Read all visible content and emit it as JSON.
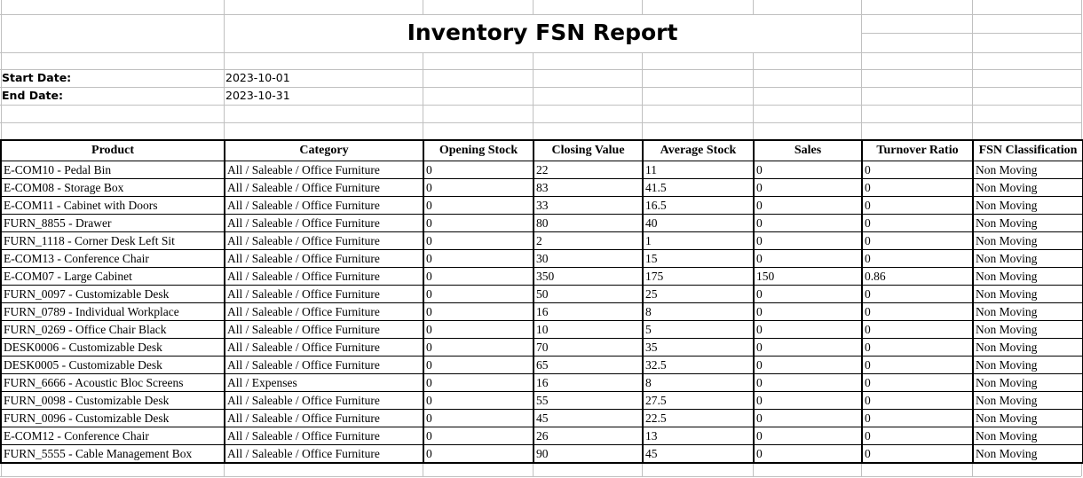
{
  "sheet": {
    "title": "Inventory FSN Report",
    "fields": {
      "start": {
        "label": "Start Date:",
        "value": "2023-10-01"
      },
      "end": {
        "label": "End Date:",
        "value": "2023-10-31"
      }
    },
    "table": {
      "columns": [
        "Product",
        "Category",
        "Opening Stock",
        "Closing Value",
        "Average Stock",
        "Sales",
        "Turnover Ratio",
        "FSN Classification"
      ],
      "rows": [
        [
          "E-COM10 - Pedal Bin",
          "All / Saleable / Office Furniture",
          "0",
          "22",
          "11",
          "0",
          "0",
          "Non Moving"
        ],
        [
          "E-COM08 - Storage Box",
          "All / Saleable / Office Furniture",
          "0",
          "83",
          "41.5",
          "0",
          "0",
          "Non Moving"
        ],
        [
          "E-COM11 - Cabinet with Doors",
          "All / Saleable / Office Furniture",
          "0",
          "33",
          "16.5",
          "0",
          "0",
          "Non Moving"
        ],
        [
          "FURN_8855 - Drawer",
          "All / Saleable / Office Furniture",
          "0",
          "80",
          "40",
          "0",
          "0",
          "Non Moving"
        ],
        [
          "FURN_1118 - Corner Desk Left Sit",
          "All / Saleable / Office Furniture",
          "0",
          "2",
          "1",
          "0",
          "0",
          "Non Moving"
        ],
        [
          "E-COM13 - Conference Chair",
          "All / Saleable / Office Furniture",
          "0",
          "30",
          "15",
          "0",
          "0",
          "Non Moving"
        ],
        [
          "E-COM07 - Large Cabinet",
          "All / Saleable / Office Furniture",
          "0",
          "350",
          "175",
          "150",
          "0.86",
          "Non Moving"
        ],
        [
          "FURN_0097 - Customizable Desk",
          "All / Saleable / Office Furniture",
          "0",
          "50",
          "25",
          "0",
          "0",
          "Non Moving"
        ],
        [
          "FURN_0789 - Individual Workplace",
          "All / Saleable / Office Furniture",
          "0",
          "16",
          "8",
          "0",
          "0",
          "Non Moving"
        ],
        [
          "FURN_0269 - Office Chair Black",
          "All / Saleable / Office Furniture",
          "0",
          "10",
          "5",
          "0",
          "0",
          "Non Moving"
        ],
        [
          "DESK0006 - Customizable Desk",
          "All / Saleable / Office Furniture",
          "0",
          "70",
          "35",
          "0",
          "0",
          "Non Moving"
        ],
        [
          "DESK0005 - Customizable Desk",
          "All / Saleable / Office Furniture",
          "0",
          "65",
          "32.5",
          "0",
          "0",
          "Non Moving"
        ],
        [
          "FURN_6666 - Acoustic Bloc Screens",
          "All / Expenses",
          "0",
          "16",
          "8",
          "0",
          "0",
          "Non Moving"
        ],
        [
          "FURN_0098 - Customizable Desk",
          "All / Saleable / Office Furniture",
          "0",
          "55",
          "27.5",
          "0",
          "0",
          "Non Moving"
        ],
        [
          "FURN_0096 - Customizable Desk",
          "All / Saleable / Office Furniture",
          "0",
          "45",
          "22.5",
          "0",
          "0",
          "Non Moving"
        ],
        [
          "E-COM12 - Conference Chair",
          "All / Saleable / Office Furniture",
          "0",
          "26",
          "13",
          "0",
          "0",
          "Non Moving"
        ],
        [
          "FURN_5555 - Cable Management Box",
          "All / Saleable / Office Furniture",
          "0",
          "90",
          "45",
          "0",
          "0",
          "Non Moving"
        ]
      ]
    },
    "colors": {
      "grid_line": "#c0c0c0",
      "table_border": "#000000",
      "text": "#000000",
      "background": "#ffffff"
    }
  }
}
